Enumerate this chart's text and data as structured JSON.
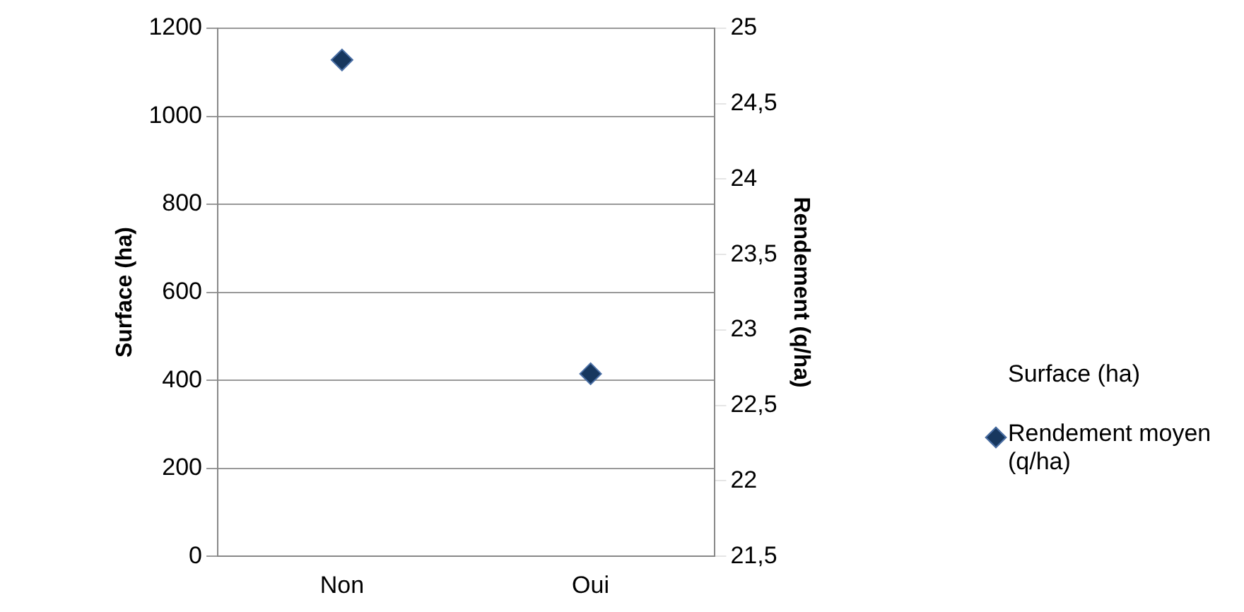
{
  "chart_data": {
    "type": "scatter",
    "categories": [
      "Non",
      "Oui"
    ],
    "ylabel": "Surface (ha)",
    "y2label": "Rendement (q/ha)",
    "ylim": [
      0,
      1200
    ],
    "yticks": [
      0,
      200,
      400,
      600,
      800,
      1000,
      1200
    ],
    "y2lim": [
      21.5,
      25
    ],
    "y2ticks": [
      {
        "value": 21.5,
        "label": "21,5"
      },
      {
        "value": 22,
        "label": "22"
      },
      {
        "value": 22.5,
        "label": "22,5"
      },
      {
        "value": 23,
        "label": "23"
      },
      {
        "value": 23.5,
        "label": "23,5"
      },
      {
        "value": 24,
        "label": "24"
      },
      {
        "value": 24.5,
        "label": "24,5"
      },
      {
        "value": 25,
        "label": "25"
      }
    ],
    "series": [
      {
        "name": "Surface (ha)",
        "type": "bar",
        "values": [
          null,
          null
        ]
      },
      {
        "name": "Rendement moyen (q/ha)",
        "axis": "y2",
        "color": "#17375e",
        "values": [
          24.79,
          22.71
        ]
      }
    ],
    "grid": "y",
    "legend": "right",
    "marker": "diamond"
  }
}
